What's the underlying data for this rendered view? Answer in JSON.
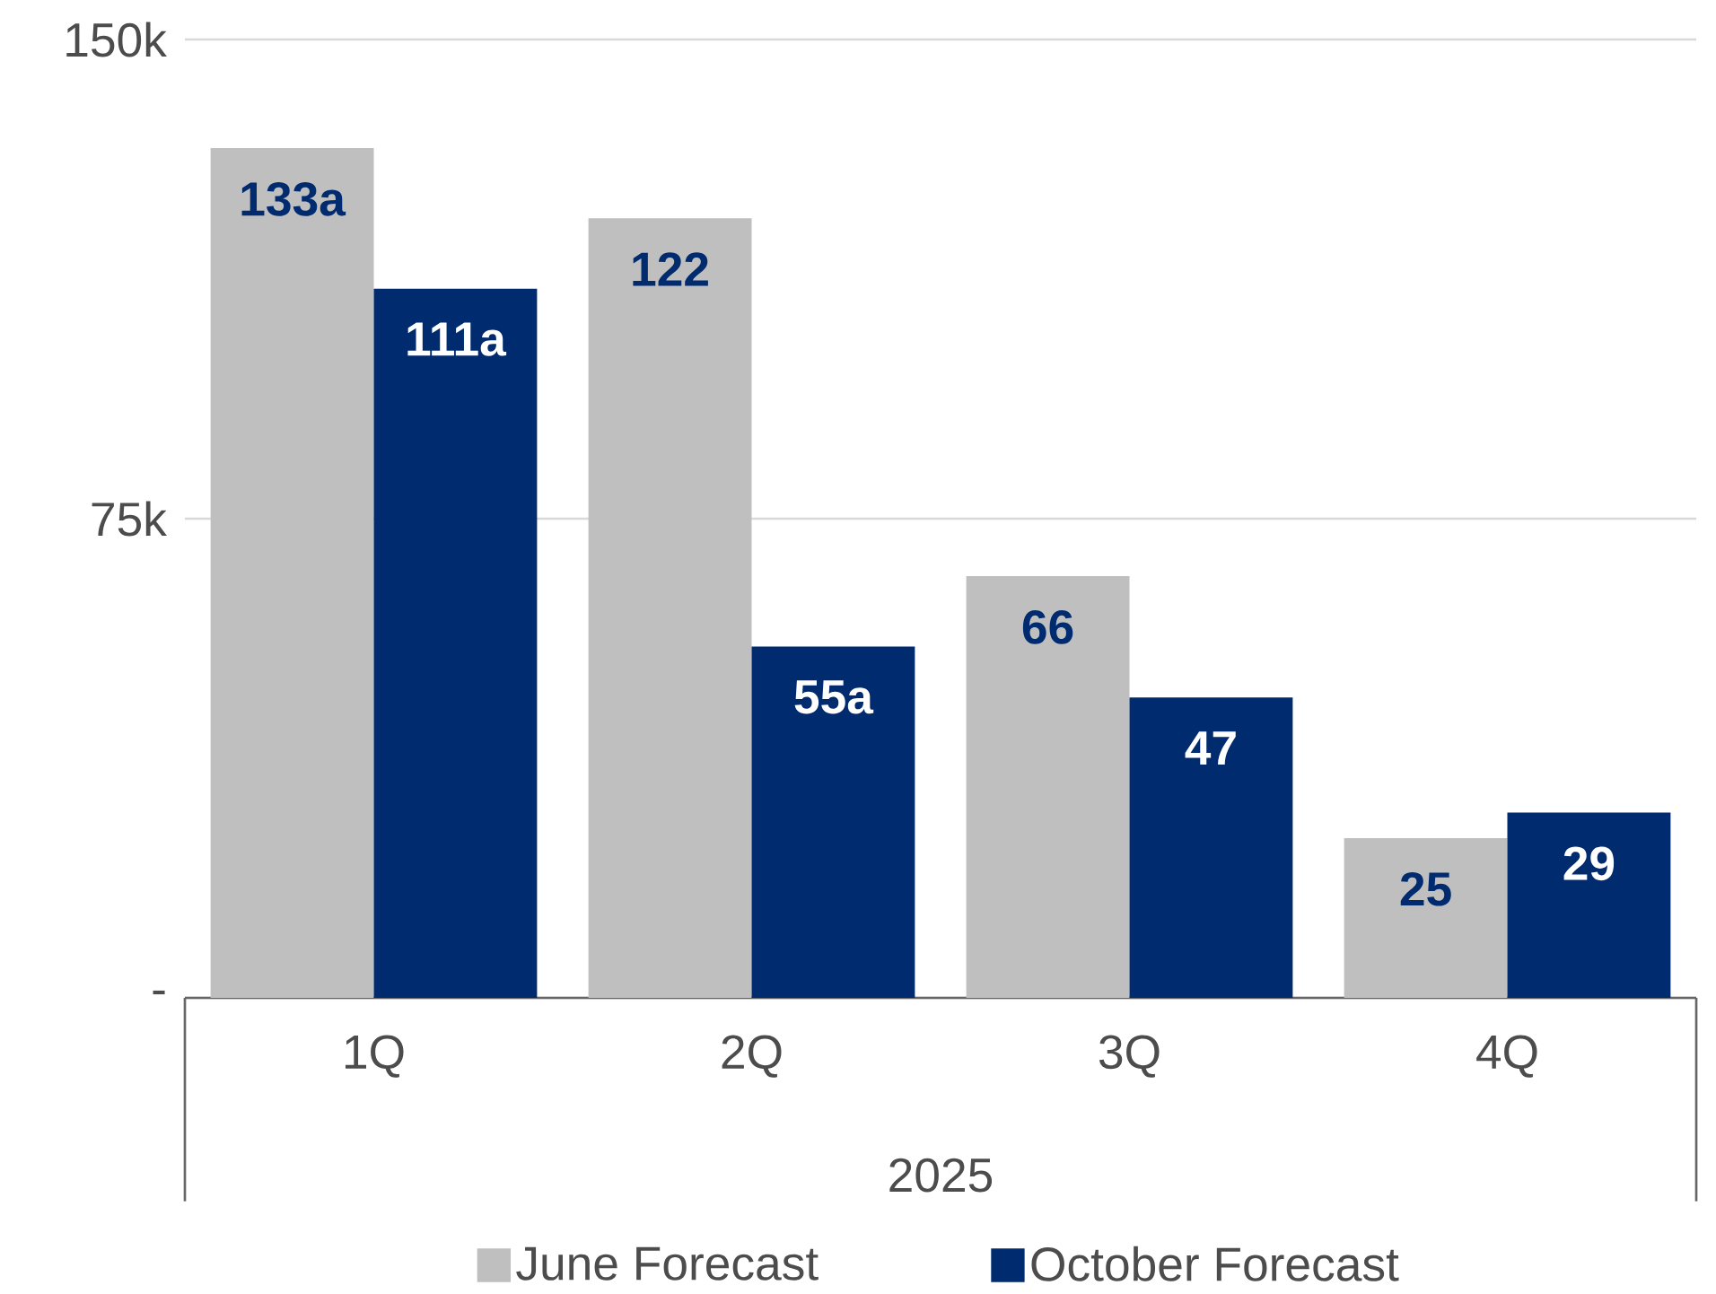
{
  "chart_data": {
    "type": "bar",
    "xlabel": "2025",
    "categories": [
      "1Q",
      "2Q",
      "3Q",
      "4Q"
    ],
    "series": [
      {
        "name": "June Forecast",
        "color": "#bfbfbf",
        "values": [
          133,
          122,
          66,
          25
        ],
        "value_labels": [
          "133a",
          "122",
          "66",
          "25"
        ]
      },
      {
        "name": "October Forecast",
        "color": "#002b6e",
        "values": [
          111,
          55,
          47,
          29
        ],
        "value_labels": [
          "111a",
          "55a",
          "47",
          "29"
        ]
      }
    ],
    "ylim": [
      0,
      150
    ],
    "yticks": [
      {
        "value": 0,
        "label": "-"
      },
      {
        "value": 75,
        "label": "75k"
      },
      {
        "value": 150,
        "label": "150k"
      }
    ],
    "grid": "y",
    "legend": "bottom"
  }
}
